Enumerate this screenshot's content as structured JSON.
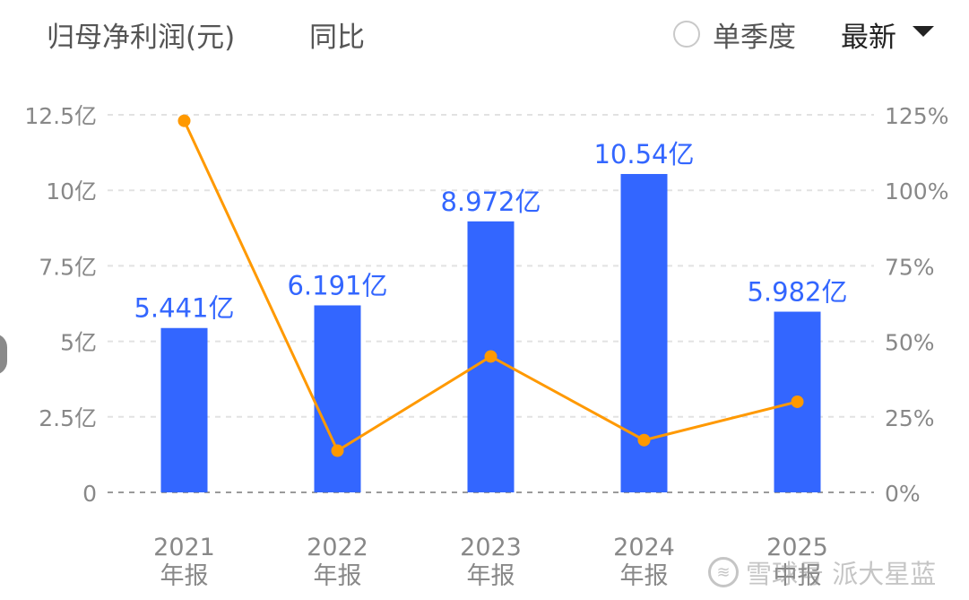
{
  "legend": {
    "bar_label": "归母净利润(元)",
    "line_label": "同比",
    "quarter_toggle_label": "单季度",
    "period_select_value": "最新"
  },
  "watermark": {
    "text": "雪球号 派大星蓝"
  },
  "colors": {
    "bar": "#3366ff",
    "line": "#ff9900",
    "grid": "#e2e2e2",
    "axis_text": "#888888",
    "data_label": "#3366ff"
  },
  "chart_data": {
    "type": "bar",
    "title": "",
    "xlabel": "",
    "ylabel": "",
    "categories": [
      [
        "2021",
        "年报"
      ],
      [
        "2022",
        "年报"
      ],
      [
        "2023",
        "年报"
      ],
      [
        "2024",
        "年报"
      ],
      [
        "2025",
        "中报"
      ]
    ],
    "series": [
      {
        "name": "归母净利润(元)",
        "type": "bar",
        "axis": "left",
        "values": [
          5.441,
          6.191,
          8.972,
          10.54,
          5.982
        ],
        "labels": [
          "5.441亿",
          "6.191亿",
          "8.972亿",
          "10.54亿",
          "5.982亿"
        ]
      },
      {
        "name": "同比",
        "type": "line",
        "axis": "right",
        "values": [
          123,
          13.8,
          45,
          17.3,
          30
        ]
      }
    ],
    "y_left": {
      "range": [
        0,
        12.5
      ],
      "ticks": [
        0,
        2.5,
        5,
        7.5,
        10,
        12.5
      ],
      "tick_labels": [
        "0",
        "2.5亿",
        "5亿",
        "7.5亿",
        "10亿",
        "12.5亿"
      ]
    },
    "y_right": {
      "range": [
        0,
        125
      ],
      "ticks": [
        0,
        25,
        50,
        75,
        100,
        125
      ],
      "tick_labels": [
        "0%",
        "25%",
        "50%",
        "75%",
        "100%",
        "125%"
      ]
    },
    "grid": true,
    "legend_position": "top-left"
  }
}
